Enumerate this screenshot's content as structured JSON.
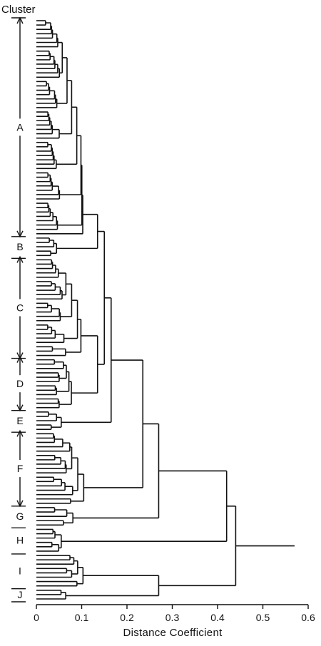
{
  "chart_data": {
    "type": "dendrogram",
    "header_label": "Cluster",
    "xlabel": "Distance Coefficient",
    "xlim": [
      0,
      0.6
    ],
    "x_ticks": [
      "0",
      "0.1",
      "0.2",
      "0.3",
      "0.4",
      "0.5",
      "0.6"
    ],
    "clusters": [
      {
        "label": "A",
        "leaf_start": 0,
        "leaf_end": 49
      },
      {
        "label": "B",
        "leaf_start": 50,
        "leaf_end": 54
      },
      {
        "label": "C",
        "leaf_start": 55,
        "leaf_end": 77
      },
      {
        "label": "D",
        "leaf_start": 78,
        "leaf_end": 89
      },
      {
        "label": "E",
        "leaf_start": 90,
        "leaf_end": 94
      },
      {
        "label": "F",
        "leaf_start": 95,
        "leaf_end": 111
      },
      {
        "label": "G",
        "leaf_start": 112,
        "leaf_end": 116
      },
      {
        "label": "H",
        "leaf_start": 117,
        "leaf_end": 122
      },
      {
        "label": "I",
        "leaf_start": 123,
        "leaf_end": 130
      },
      {
        "label": "J",
        "leaf_start": 131,
        "leaf_end": 133
      }
    ],
    "leaf_count": 134,
    "root_distance": 0.57
  }
}
